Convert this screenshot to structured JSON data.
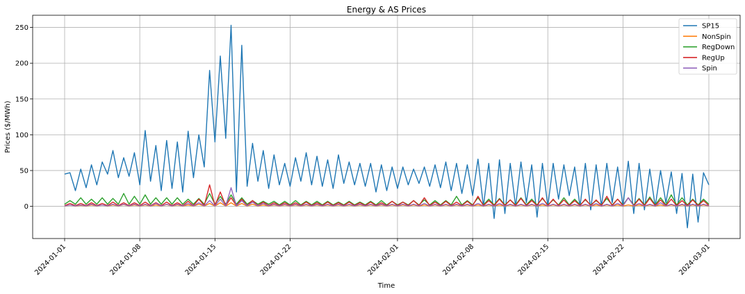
{
  "chart_data": {
    "type": "line",
    "title": "Energy & AS Prices",
    "xlabel": "Time",
    "ylabel": "Prices ($/MWh)",
    "xlim": [
      "2024-01-01",
      "2024-03-01"
    ],
    "ylim": [
      -45,
      267
    ],
    "grid": true,
    "legend_position": "top-right",
    "x_ticks": [
      "2024-01-01",
      "2024-01-08",
      "2024-01-15",
      "2024-01-22",
      "2024-02-01",
      "2024-02-08",
      "2024-02-15",
      "2024-02-22",
      "2024-03-01"
    ],
    "y_ticks": [
      0,
      50,
      100,
      150,
      200,
      250
    ],
    "x": [
      "2024-01-01",
      "2024-01-02",
      "2024-01-03",
      "2024-01-04",
      "2024-01-05",
      "2024-01-06",
      "2024-01-07",
      "2024-01-08",
      "2024-01-09",
      "2024-01-10",
      "2024-01-11",
      "2024-01-12",
      "2024-01-13",
      "2024-01-14",
      "2024-01-15",
      "2024-01-16",
      "2024-01-17",
      "2024-01-18",
      "2024-01-19",
      "2024-01-20",
      "2024-01-21",
      "2024-01-22",
      "2024-01-23",
      "2024-01-24",
      "2024-01-25",
      "2024-01-26",
      "2024-01-27",
      "2024-01-28",
      "2024-01-29",
      "2024-01-30",
      "2024-01-31",
      "2024-02-01",
      "2024-02-02",
      "2024-02-03",
      "2024-02-04",
      "2024-02-05",
      "2024-02-06",
      "2024-02-07",
      "2024-02-08",
      "2024-02-09",
      "2024-02-10",
      "2024-02-11",
      "2024-02-12",
      "2024-02-13",
      "2024-02-14",
      "2024-02-15",
      "2024-02-16",
      "2024-02-17",
      "2024-02-18",
      "2024-02-19",
      "2024-02-20",
      "2024-02-21",
      "2024-02-22",
      "2024-02-23",
      "2024-02-24",
      "2024-02-25",
      "2024-02-26",
      "2024-02-27",
      "2024-02-28",
      "2024-02-29",
      "2024-03-01"
    ],
    "series": [
      {
        "name": "SP15",
        "color": "#1f77b4",
        "min": [
          45,
          22,
          26,
          30,
          45,
          40,
          42,
          30,
          35,
          22,
          25,
          20,
          40,
          55,
          90,
          95,
          20,
          28,
          35,
          25,
          30,
          28,
          35,
          30,
          28,
          25,
          32,
          30,
          28,
          20,
          22,
          25,
          30,
          32,
          28,
          26,
          22,
          18,
          15,
          0,
          -17,
          -10,
          0,
          5,
          -15,
          0,
          10,
          15,
          0,
          -5,
          0,
          5,
          0,
          -10,
          -5,
          0,
          5,
          -10,
          -30,
          -22,
          30
        ],
        "max": [
          47,
          52,
          58,
          62,
          78,
          68,
          75,
          106,
          85,
          92,
          90,
          105,
          100,
          190,
          210,
          253,
          225,
          88,
          78,
          72,
          60,
          68,
          75,
          70,
          65,
          72,
          62,
          60,
          60,
          58,
          55,
          55,
          52,
          55,
          58,
          62,
          60,
          58,
          66,
          60,
          65,
          60,
          62,
          58,
          60,
          60,
          58,
          55,
          60,
          58,
          60,
          55,
          63,
          60,
          52,
          50,
          48,
          46,
          45,
          47,
          43
        ]
      },
      {
        "name": "NonSpin",
        "color": "#ff7f0e",
        "min": [
          0.3,
          0.3,
          0.3,
          0.3,
          0.3,
          0.3,
          0.3,
          0.3,
          0.3,
          0.3,
          0.3,
          0.3,
          0.3,
          0.3,
          0.3,
          0.3,
          0.3,
          0.3,
          0.3,
          0.3,
          0.3,
          0.3,
          0.3,
          0.3,
          0.3,
          0.3,
          0.3,
          0.3,
          0.3,
          0.3,
          0.3,
          0.3,
          0.3,
          0.3,
          0.3,
          0.3,
          0.3,
          0.3,
          0.3,
          0.3,
          0.3,
          0.3,
          0.3,
          0.3,
          0.3,
          0.3,
          0.3,
          0.3,
          0.3,
          0.3,
          0.3,
          0.3,
          0.3,
          0.3,
          0.3,
          0.3,
          0.3,
          0.3,
          0.3,
          0.3,
          0.3
        ],
        "max": [
          2,
          1.5,
          2,
          2,
          2,
          2.5,
          2,
          2,
          2,
          2.5,
          2,
          2,
          3,
          4,
          5,
          5,
          4,
          3,
          2,
          2,
          2,
          2,
          2,
          2,
          2,
          2,
          2,
          2,
          2,
          2,
          2,
          2,
          2,
          2,
          2,
          2,
          2,
          2,
          2,
          2,
          2,
          2,
          2,
          2,
          2,
          2,
          2,
          2,
          2,
          2,
          2,
          2,
          2,
          2,
          2,
          2,
          2,
          2,
          2,
          2,
          2
        ]
      },
      {
        "name": "RegDown",
        "color": "#2ca02c",
        "min": [
          3,
          3,
          3,
          3,
          3,
          3,
          3,
          3,
          3,
          3,
          3,
          3,
          3,
          3,
          3,
          3,
          3,
          3,
          3,
          3,
          2,
          2,
          2,
          2,
          2,
          2,
          2,
          2,
          2,
          2,
          2,
          2,
          2,
          2,
          2,
          2,
          2,
          2,
          2,
          2,
          2,
          2,
          2,
          2,
          2,
          2,
          2,
          2,
          2,
          2,
          2,
          2,
          2,
          2,
          2,
          2,
          2,
          2,
          2,
          2,
          3
        ],
        "max": [
          8,
          12,
          10,
          12,
          11,
          18,
          14,
          16,
          12,
          12,
          12,
          10,
          11,
          18,
          14,
          16,
          12,
          8,
          7,
          7,
          7,
          8,
          7,
          7,
          7,
          6,
          7,
          6,
          7,
          8,
          7,
          6,
          8,
          9,
          8,
          8,
          14,
          8,
          12,
          10,
          11,
          9,
          12,
          10,
          11,
          9,
          12,
          10,
          9,
          8,
          11,
          10,
          12,
          11,
          13,
          12,
          16,
          12,
          10,
          10,
          9
        ]
      },
      {
        "name": "RegUp",
        "color": "#d62728",
        "min": [
          1,
          1,
          1,
          1,
          1,
          1,
          1,
          1,
          1,
          1,
          1,
          1,
          1,
          1,
          1,
          1,
          1,
          1,
          1,
          1,
          1,
          1,
          1,
          1,
          1,
          1,
          1,
          1,
          1,
          1,
          1,
          1,
          1,
          1,
          1,
          1,
          1,
          1,
          1,
          1,
          1,
          1,
          1,
          1,
          1,
          1,
          1,
          1,
          1,
          1,
          1,
          1,
          1,
          1,
          1,
          1,
          1,
          1,
          1,
          1,
          1
        ],
        "max": [
          4,
          4,
          5,
          4,
          6,
          5,
          5,
          6,
          5,
          6,
          5,
          7,
          10,
          30,
          20,
          12,
          10,
          8,
          6,
          5,
          5,
          5,
          6,
          5,
          6,
          5,
          6,
          5,
          6,
          5,
          7,
          6,
          8,
          12,
          6,
          7,
          6,
          7,
          14,
          8,
          10,
          9,
          11,
          8,
          12,
          10,
          9,
          8,
          10,
          9,
          14,
          10,
          12,
          10,
          11,
          9,
          10,
          8,
          9,
          8,
          6
        ]
      },
      {
        "name": "Spin",
        "color": "#9467bd",
        "min": [
          0.5,
          0.5,
          0.5,
          0.5,
          0.5,
          0.5,
          0.5,
          0.5,
          0.5,
          0.5,
          0.5,
          0.5,
          0.5,
          0.5,
          0.5,
          0.5,
          0.5,
          0.5,
          0.5,
          0.5,
          0.5,
          0.5,
          0.5,
          0.5,
          0.5,
          0.5,
          0.5,
          0.5,
          0.5,
          0.5,
          0.5,
          0.5,
          0.5,
          0.5,
          0.5,
          0.5,
          0.5,
          0.5,
          0.5,
          0.5,
          0.5,
          0.5,
          0.5,
          0.5,
          0.5,
          0.5,
          0.5,
          0.5,
          0.5,
          0.5,
          0.5,
          0.5,
          0.5,
          0.5,
          0.5,
          0.5,
          0.5,
          0.5,
          0.5,
          0.5,
          0.5
        ],
        "max": [
          2,
          2,
          3,
          2,
          3,
          3,
          3,
          3,
          4,
          3,
          3,
          4,
          5,
          8,
          10,
          26,
          8,
          6,
          4,
          3,
          3,
          3,
          3,
          3,
          3,
          3,
          3,
          3,
          3,
          3,
          3,
          3,
          3,
          4,
          3,
          3,
          3,
          3,
          4,
          3,
          4,
          3,
          3,
          3,
          4,
          3,
          3,
          3,
          3,
          4,
          3,
          4,
          12,
          4,
          3,
          5,
          3,
          3,
          3,
          3,
          3
        ]
      }
    ]
  }
}
